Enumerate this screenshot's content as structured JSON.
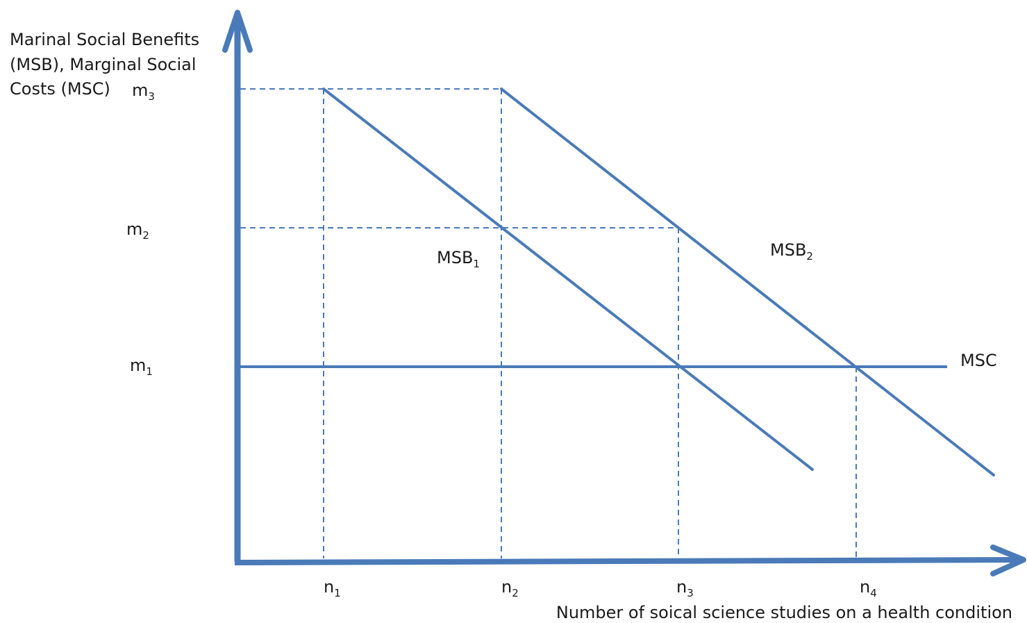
{
  "axis_title_y": [
    "Marinal Social Benefits",
    "(MSB), Marginal Social",
    "Costs (MSC)"
  ],
  "axis_title_x": "Number of soical science studies on a health condition",
  "y_ticks": [
    {
      "base": "m",
      "sub": "3"
    },
    {
      "base": "m",
      "sub": "2"
    },
    {
      "base": "m",
      "sub": "1"
    }
  ],
  "x_ticks": [
    {
      "base": "n",
      "sub": "1"
    },
    {
      "base": "n",
      "sub": "2"
    },
    {
      "base": "n",
      "sub": "3"
    },
    {
      "base": "n",
      "sub": "4"
    }
  ],
  "curves": {
    "msb1": {
      "base": "MSB",
      "sub": "1"
    },
    "msb2": {
      "base": "MSB",
      "sub": "2"
    },
    "msc": {
      "base": "MSC",
      "sub": ""
    }
  },
  "colors": {
    "line": "#4a7ab8",
    "text": "#1a1a1a"
  }
}
